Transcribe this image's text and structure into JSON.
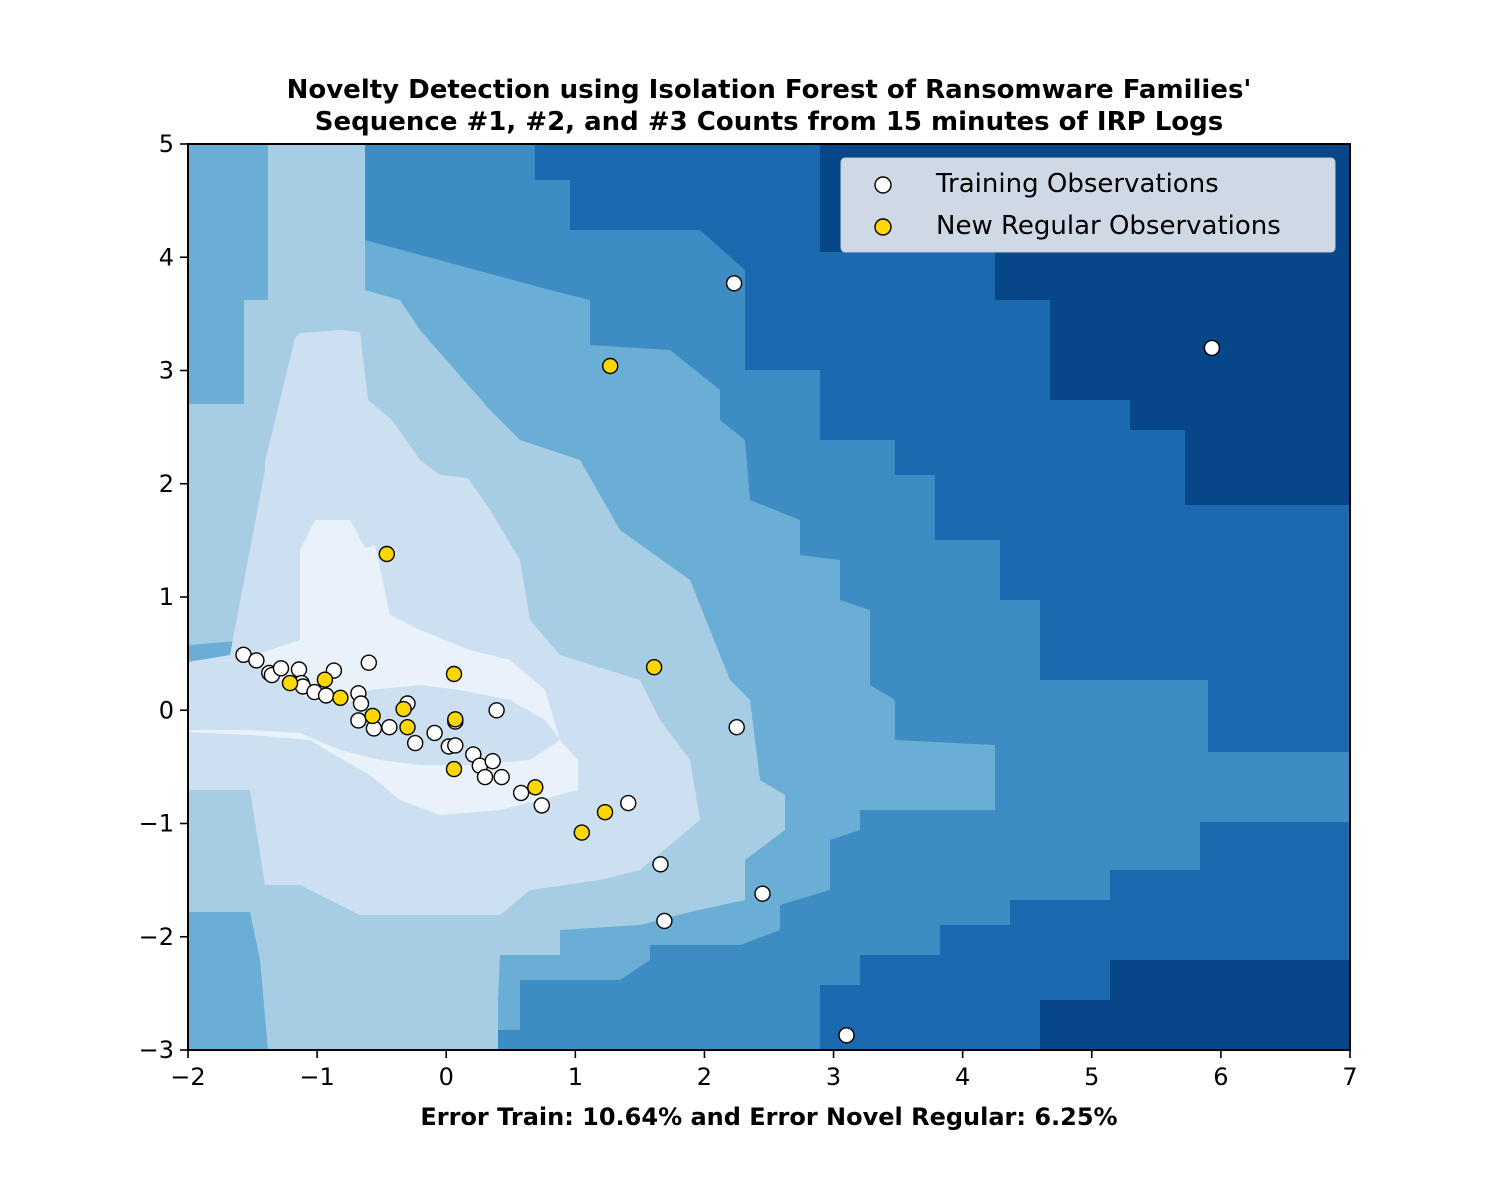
{
  "chart_data": {
    "type": "scatter",
    "title_lines": [
      "Novelty Detection using Isolation Forest of Ransomware Families'",
      "Sequence #1, #2, and #3 Counts from 15 minutes of IRP Logs"
    ],
    "xlabel": "Error Train: 10.64% and Error Novel Regular: 6.25%",
    "ylabel": "",
    "xlim": [
      -2,
      7
    ],
    "ylim": [
      -3,
      5
    ],
    "x_ticks": [
      -2,
      -1,
      0,
      1,
      2,
      3,
      4,
      5,
      6,
      7
    ],
    "y_ticks": [
      -3,
      -2,
      -1,
      0,
      1,
      2,
      3,
      4,
      5
    ],
    "x_tick_labels": [
      "−2",
      "−1",
      "0",
      "1",
      "2",
      "3",
      "4",
      "5",
      "6",
      "7"
    ],
    "y_tick_labels": [
      "−3",
      "−2",
      "−1",
      "0",
      "1",
      "2",
      "3",
      "4",
      "5"
    ],
    "grid": false,
    "legend_position": "top-right",
    "background_colors": [
      "#08468a",
      "#1b69af",
      "#3d8cc4",
      "#6aaed6",
      "#a6cde4",
      "#cde0f1",
      "#e9f2fa"
    ],
    "series": [
      {
        "name": "Training Observations",
        "color": "#ffffff",
        "edge_color": "#000000",
        "points": [
          [
            2.23,
            3.77
          ],
          [
            5.93,
            3.2
          ],
          [
            -1.57,
            0.49
          ],
          [
            -1.47,
            0.44
          ],
          [
            -1.37,
            0.33
          ],
          [
            -1.35,
            0.31
          ],
          [
            -1.28,
            0.37
          ],
          [
            -1.14,
            0.36
          ],
          [
            -1.12,
            0.24
          ],
          [
            -1.11,
            0.21
          ],
          [
            -1.02,
            0.16
          ],
          [
            -0.93,
            0.13
          ],
          [
            -0.87,
            0.35
          ],
          [
            -0.6,
            0.42
          ],
          [
            -0.68,
            0.15
          ],
          [
            -0.66,
            0.06
          ],
          [
            -0.68,
            -0.09
          ],
          [
            -0.56,
            -0.16
          ],
          [
            -0.44,
            -0.15
          ],
          [
            -0.3,
            0.06
          ],
          [
            -0.24,
            -0.29
          ],
          [
            -0.09,
            -0.2
          ],
          [
            0.02,
            -0.32
          ],
          [
            0.07,
            -0.31
          ],
          [
            0.07,
            -0.1
          ],
          [
            0.21,
            -0.39
          ],
          [
            0.26,
            -0.49
          ],
          [
            0.3,
            -0.59
          ],
          [
            0.36,
            -0.45
          ],
          [
            0.39,
            0.0
          ],
          [
            0.43,
            -0.59
          ],
          [
            0.58,
            -0.73
          ],
          [
            0.74,
            -0.84
          ],
          [
            1.41,
            -0.82
          ],
          [
            2.25,
            -0.15
          ],
          [
            1.66,
            -1.36
          ],
          [
            1.69,
            -1.86
          ],
          [
            2.45,
            -1.62
          ],
          [
            3.1,
            -2.87
          ]
        ]
      },
      {
        "name": "New Regular Observations",
        "color": "#ffd700",
        "edge_color": "#000000",
        "points": [
          [
            1.27,
            3.04
          ],
          [
            -0.46,
            1.38
          ],
          [
            1.61,
            0.38
          ],
          [
            0.06,
            0.32
          ],
          [
            -1.21,
            0.24
          ],
          [
            -0.94,
            0.27
          ],
          [
            -0.82,
            0.11
          ],
          [
            -0.57,
            -0.05
          ],
          [
            -0.33,
            0.01
          ],
          [
            -0.3,
            -0.15
          ],
          [
            0.07,
            -0.08
          ],
          [
            0.06,
            -0.52
          ],
          [
            0.69,
            -0.68
          ],
          [
            1.05,
            -1.08
          ],
          [
            1.23,
            -0.9
          ]
        ]
      }
    ]
  }
}
